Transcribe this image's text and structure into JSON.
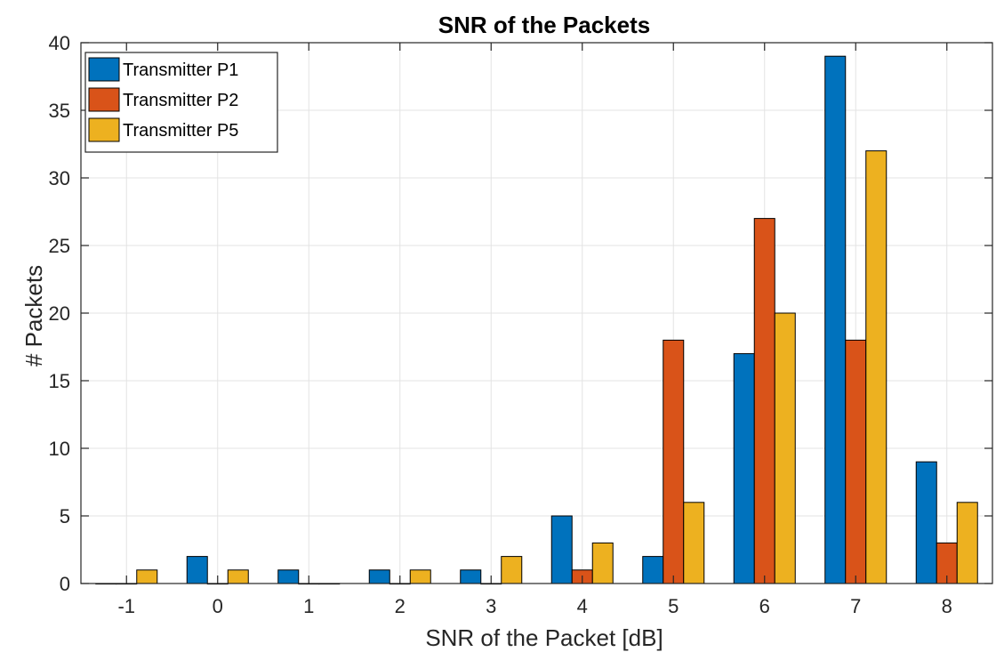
{
  "chart_data": {
    "type": "bar",
    "title": "SNR of the Packets",
    "xlabel": "SNR of the Packet [dB]",
    "ylabel": "# Packets",
    "categories": [
      "-1",
      "0",
      "1",
      "2",
      "3",
      "4",
      "5",
      "6",
      "7",
      "8"
    ],
    "series": [
      {
        "name": "Transmitter P1",
        "color": "#0072BD",
        "values": [
          0,
          2,
          1,
          1,
          1,
          5,
          2,
          17,
          39,
          9
        ]
      },
      {
        "name": "Transmitter P2",
        "color": "#D95319",
        "values": [
          0,
          0,
          0,
          0,
          0,
          1,
          18,
          27,
          18,
          3
        ]
      },
      {
        "name": "Transmitter P5",
        "color": "#EDB120",
        "values": [
          1,
          1,
          0,
          1,
          2,
          3,
          6,
          20,
          32,
          6
        ]
      }
    ],
    "ylim": [
      0,
      40
    ],
    "yticks": [
      0,
      5,
      10,
      15,
      20,
      25,
      30,
      35,
      40
    ],
    "grid": true,
    "legend_position": "top-left"
  }
}
